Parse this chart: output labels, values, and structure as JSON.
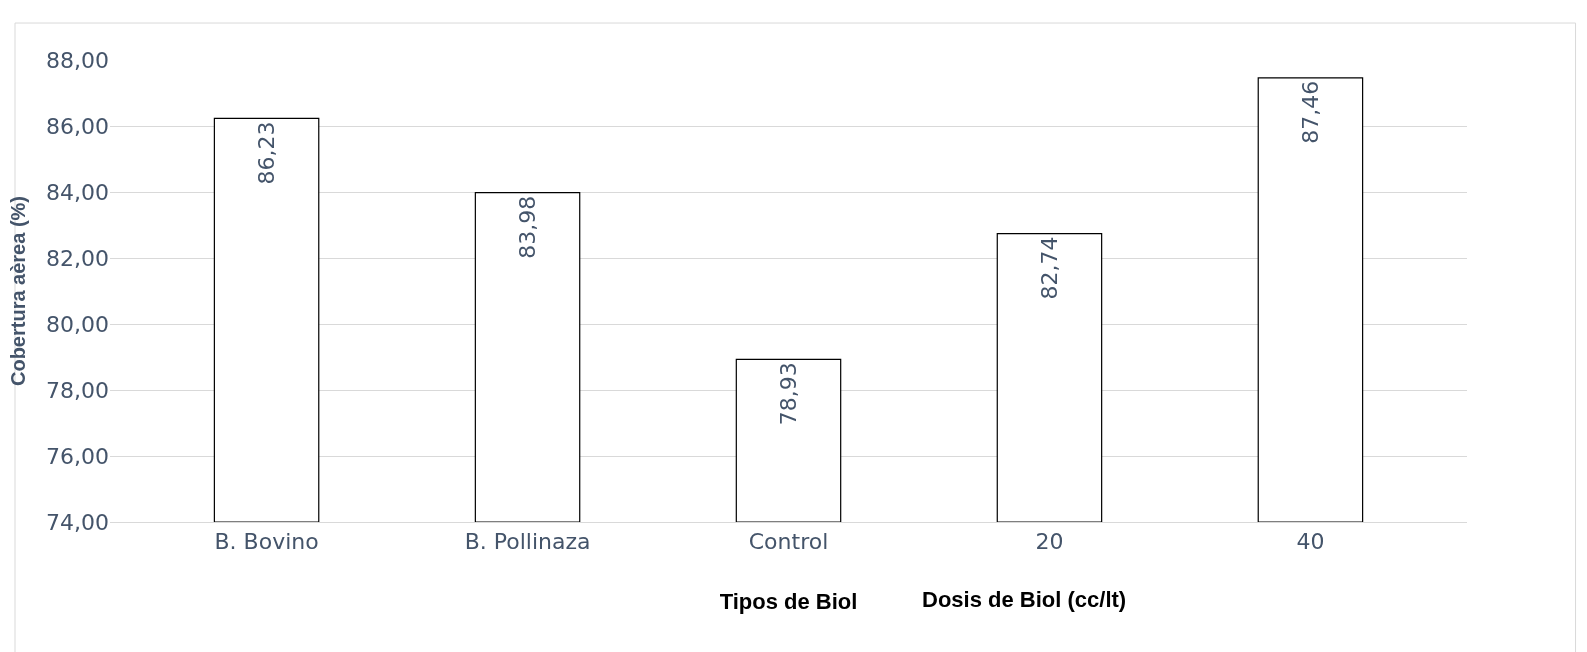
{
  "chart_data": {
    "type": "bar",
    "ylabel": "Cobertura aèrea (%)",
    "xlabel": "Tipos de Biol",
    "annotations": [
      "Dosis de Biol (cc/lt)"
    ],
    "categories": [
      "B. Bovino",
      "B. Pollinaza",
      "Control",
      "20",
      "40"
    ],
    "values": [
      86.23,
      83.98,
      78.93,
      82.74,
      87.46
    ],
    "value_labels": [
      "86,23",
      "83,98",
      "78,93",
      "82,74",
      "87,46"
    ],
    "color": "#ffffff",
    "ylim": [
      74,
      88
    ],
    "yticks": [
      {
        "value": 74,
        "label": "74,00"
      },
      {
        "value": 76,
        "label": "76,00"
      },
      {
        "value": 78,
        "label": "78,00"
      },
      {
        "value": 80,
        "label": "80,00"
      },
      {
        "value": 82,
        "label": "82,00"
      },
      {
        "value": 84,
        "label": "84,00"
      },
      {
        "value": 86,
        "label": "86,00"
      },
      {
        "value": 88,
        "label": "88,00"
      }
    ],
    "grid": "y"
  }
}
